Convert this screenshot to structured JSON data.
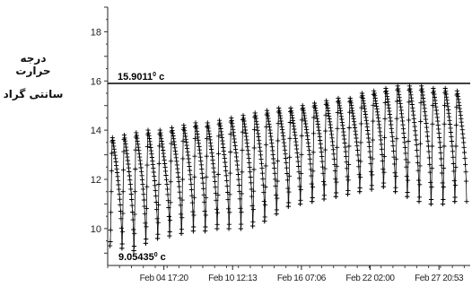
{
  "chart_data": {
    "type": "line",
    "title": "",
    "ylabel_lines": [
      "درجه حرارت",
      "سانتی گراد"
    ],
    "xlabel": "",
    "ylim": [
      8.5,
      19
    ],
    "yticks": [
      10,
      12,
      14,
      16,
      18
    ],
    "xlim": [
      0,
      30.5
    ],
    "xticks": [
      {
        "day": 4.73,
        "label": "Feb 04 17:20"
      },
      {
        "day": 10.51,
        "label": "Feb 10 12:13"
      },
      {
        "day": 16.3,
        "label": "Feb 16 07:06"
      },
      {
        "day": 22.08,
        "label": "Feb 22 02:00"
      },
      {
        "day": 27.87,
        "label": "Feb 27 20:53"
      }
    ],
    "max_line": {
      "value": 15.9011,
      "label": "15.9011",
      "unit": "c"
    },
    "min_marker": {
      "value": 9.05435,
      "label": "9.05435",
      "unit": "c"
    },
    "series": [
      {
        "marker": "plus",
        "cycle_days": 1,
        "start_day": 0.2,
        "daily_max": [
          13.7,
          13.8,
          13.9,
          14.0,
          14.0,
          14.1,
          14.2,
          14.3,
          14.3,
          14.4,
          14.5,
          14.6,
          14.7,
          14.8,
          14.9,
          14.9,
          15.0,
          15.1,
          15.2,
          15.3,
          15.3,
          15.5,
          15.6,
          15.7,
          15.8,
          15.8,
          15.8,
          15.7,
          15.7,
          15.6
        ],
        "daily_min": [
          9.3,
          9.2,
          9.1,
          9.4,
          9.6,
          9.7,
          9.8,
          9.9,
          9.9,
          10.0,
          10.0,
          10.0,
          10.1,
          10.3,
          10.6,
          10.9,
          11.0,
          11.1,
          11.2,
          11.3,
          11.4,
          11.5,
          11.6,
          11.7,
          11.5,
          11.3,
          11.1,
          11.0,
          11.0,
          11.1
        ]
      }
    ]
  }
}
